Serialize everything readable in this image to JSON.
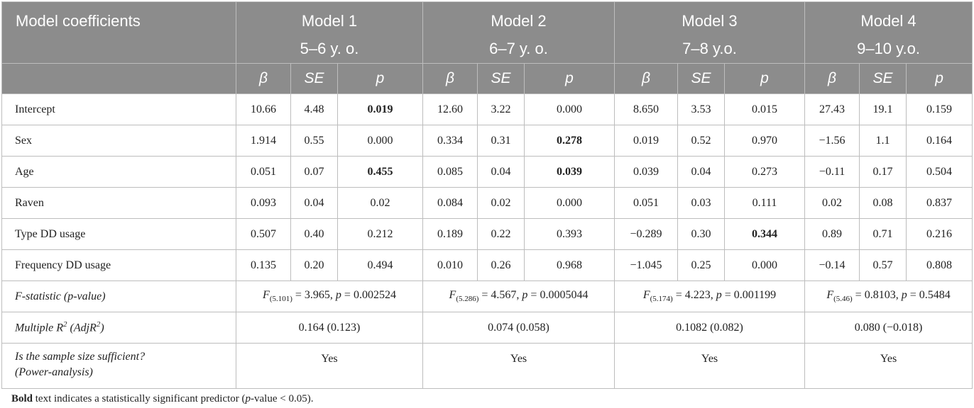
{
  "header": {
    "first_col": "Model coefficients",
    "models": [
      {
        "name": "Model 1",
        "age": "5–6 y. o."
      },
      {
        "name": "Model 2",
        "age": "6–7 y. o."
      },
      {
        "name": "Model 3",
        "age": "7–8 y.o."
      },
      {
        "name": "Model 4",
        "age": "9–10 y.o."
      }
    ],
    "sub": {
      "beta": "β",
      "se": "SE",
      "p": "p"
    }
  },
  "rows": [
    {
      "label": "Intercept",
      "v": [
        "10.66",
        "4.48",
        "0.019",
        "12.60",
        "3.22",
        "0.000",
        "8.650",
        "3.53",
        "0.015",
        "27.43",
        "19.1",
        "0.159"
      ]
    },
    {
      "label": "Sex",
      "v": [
        "1.914",
        "0.55",
        "0.000",
        "0.334",
        "0.31",
        "0.278",
        "0.019",
        "0.52",
        "0.970",
        "−1.56",
        "1.1",
        "0.164"
      ]
    },
    {
      "label": "Age",
      "v": [
        "0.051",
        "0.07",
        "0.455",
        "0.085",
        "0.04",
        "0.039",
        "0.039",
        "0.04",
        "0.273",
        "−0.11",
        "0.17",
        "0.504"
      ]
    },
    {
      "label": "Raven",
      "v": [
        "0.093",
        "0.04",
        "0.02",
        "0.084",
        "0.02",
        "0.000",
        "0.051",
        "0.03",
        "0.111",
        "0.02",
        "0.08",
        "0.837"
      ]
    },
    {
      "label": "Type DD usage",
      "v": [
        "0.507",
        "0.40",
        "0.212",
        "0.189",
        "0.22",
        "0.393",
        "−0.289",
        "0.30",
        "0.344",
        "0.89",
        "0.71",
        "0.216"
      ]
    },
    {
      "label": "Frequency DD usage",
      "v": [
        "0.135",
        "0.20",
        "0.494",
        "0.010",
        "0.26",
        "0.968",
        "−1.045",
        "0.25",
        "0.000",
        "−0.14",
        "0.57",
        "0.808"
      ]
    }
  ],
  "fstat": {
    "label": "F-statistic (p-value)",
    "F": "F",
    "models": [
      {
        "df": "(5.101)",
        "rest": " = 3.965, ",
        "p_sym": "p",
        "p_rest": " = 0.002524"
      },
      {
        "df": "(5.286)",
        "rest": " = 4.567, ",
        "p_sym": "p",
        "p_rest": " = 0.0005044"
      },
      {
        "df": "(5.174)",
        "rest": " = 4.223, ",
        "p_sym": "p",
        "p_rest": " = 0.001199"
      },
      {
        "df": "(5.46)",
        "rest": " = 0.8103, ",
        "p_sym": "p",
        "p_rest": " = 0.5484"
      }
    ]
  },
  "r2": {
    "label_a": "Multiple R",
    "sup": "2",
    "label_b": " (AdjR",
    "label_c": ")",
    "values": [
      "0.164 (0.123)",
      "0.074 (0.058)",
      "0.1082 (0.082)",
      "0.080 (−0.018)"
    ]
  },
  "sample": {
    "line1": "Is the sample size sufficient?",
    "line2": "(Power-analysis)",
    "values": [
      "Yes",
      "Yes",
      "Yes",
      "Yes"
    ]
  },
  "note": {
    "bold": "Bold",
    "t1": " text indicates a statistically significant predictor (",
    "p": "p",
    "t2": "-value < 0.05)."
  },
  "bold_cells": [
    [
      1,
      2
    ],
    [
      2,
      5
    ],
    [
      3,
      2
    ],
    [
      3,
      5
    ],
    [
      5,
      8
    ]
  ]
}
